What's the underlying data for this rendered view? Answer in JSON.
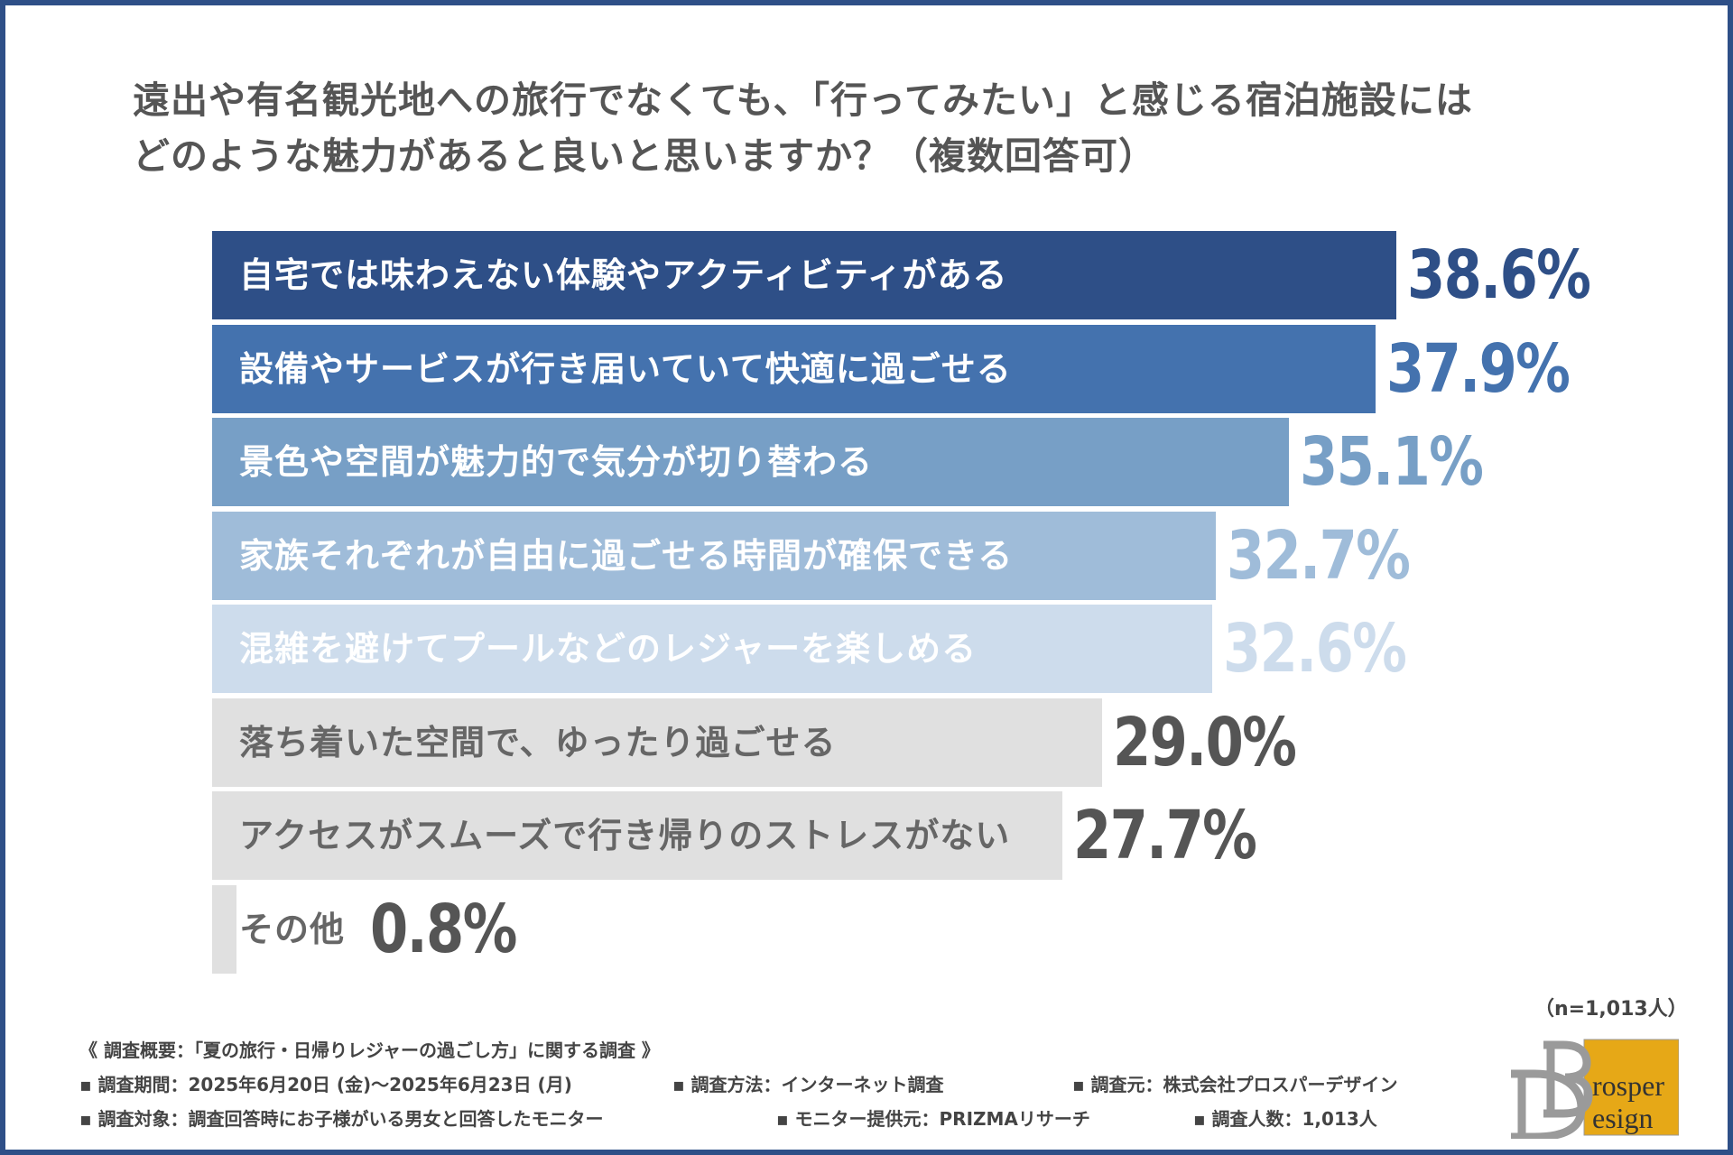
{
  "title_lines": [
    "遠出や有名観光地への旅行でなくても、「行ってみたい」と感じる宿泊施設には",
    "どのような魅力があると良いと思いますか？（複数回答可）"
  ],
  "chart_data": {
    "type": "bar",
    "orientation": "horizontal",
    "title": "遠出や有名観光地への旅行でなくても、「行ってみたい」と感じる宿泊施設には どのような魅力があると良いと思いますか？（複数回答可）",
    "categories": [
      "自宅では味わえない体験やアクティビティがある",
      "設備やサービスが行き届いていて快適に過ごせる",
      "景色や空間が魅力的で気分が切り替わる",
      "家族それぞれが自由に過ごせる時間が確保できる",
      "混雑を避けてプールなどのレジャーを楽しめる",
      "落ち着いた空間で、ゆったり過ごせる",
      "アクセスがスムーズで行き帰りのストレスがない",
      "その他"
    ],
    "values": [
      38.6,
      37.9,
      35.1,
      32.7,
      32.6,
      29.0,
      27.7,
      0.8
    ],
    "value_labels": [
      "38.6%",
      "37.9%",
      "35.1%",
      "32.7%",
      "32.6%",
      "29.0%",
      "27.7%",
      "0.8%"
    ],
    "unit": "%",
    "bar_colors": [
      "#2e4f87",
      "#4472ae",
      "#779fc6",
      "#9fbcd9",
      "#cddcec",
      "#e0e0e0",
      "#e0e0e0",
      "#e0e0e0"
    ],
    "label_colors": [
      "#ffffff",
      "#ffffff",
      "#ffffff",
      "#ffffff",
      "#ffffff",
      "#666666",
      "#666666",
      "#666666"
    ],
    "value_colors": [
      "#2e4f87",
      "#4472ae",
      "#779fc6",
      "#9fbcd9",
      "#cddcec",
      "#555555",
      "#555555",
      "#555555"
    ],
    "grid": false
  },
  "sample_size": "（n=1,013人）",
  "footer": {
    "heading": "《 調査概要：「夏の旅行・日帰りレジャーの過ごし方」に関する調査 》",
    "items": [
      "▪ 調査期間：2025年6月20日 (金)〜2025年6月23日 (月)",
      "▪ 調査方法：インターネット調査",
      "▪ 調査元：株式会社プロスパーデザイン",
      "▪ 調査対象：調査回答時にお子様がいる男女と回答したモニター",
      "▪ モニター提供元：PRIZMAリサーチ",
      "▪ 調査人数：1,013人"
    ]
  },
  "logo": {
    "text_top": "rosper",
    "text_bottom": "esign",
    "letters": "BD",
    "accent": "#e6a817"
  },
  "frame_color": "#2e4f87"
}
